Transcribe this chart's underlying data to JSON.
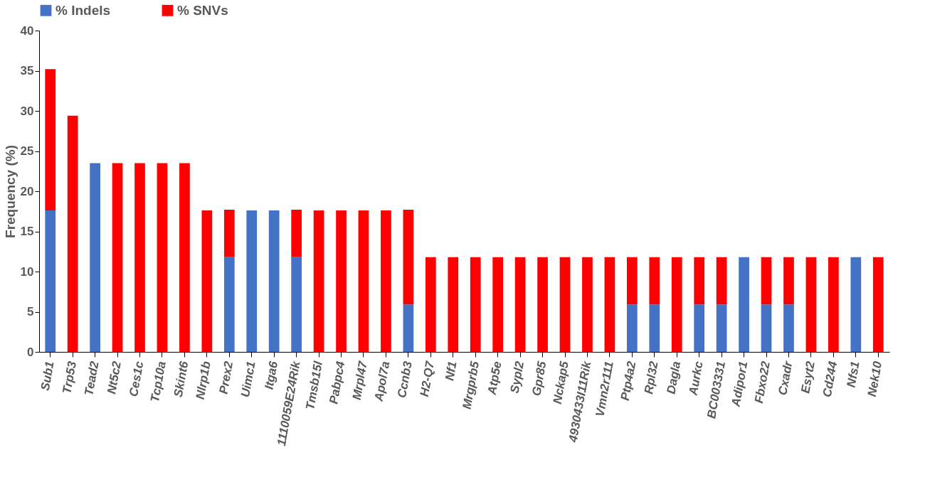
{
  "chart_data": {
    "type": "bar",
    "stacked": true,
    "ylabel": "Frequency (%)",
    "legend": "top",
    "grid": false,
    "categories": [
      "Sub1",
      "Trp53",
      "Tead2",
      "Nt5c2",
      "Ces1c",
      "Tcp10a",
      "Skint6",
      "Nlrp1b",
      "Prex2",
      "Uimc1",
      "Itga6",
      "1110059E24Rik",
      "Tmsb15l",
      "Pabpc4",
      "Mrpl47",
      "Apol7a",
      "Ccnb3",
      "H2-Q7",
      "Nf1",
      "Mrgprb5",
      "Atp5e",
      "Sypl2",
      "Gpr85",
      "Nckap5",
      "4930433I11Rik",
      "Vmn2r111",
      "Ptp4a2",
      "Rpl32",
      "Dagla",
      "Aurkc",
      "BC003331",
      "Adipor1",
      "Fbxo22",
      "Cxadr",
      "Esyt2",
      "Cd244",
      "Nfs1",
      "Nek10"
    ],
    "series": [
      {
        "name": "% Indels",
        "color": "#4472c4",
        "values": [
          17.6,
          null,
          23.5,
          null,
          null,
          null,
          null,
          null,
          11.8,
          17.6,
          17.6,
          11.8,
          null,
          null,
          null,
          null,
          5.9,
          null,
          null,
          null,
          null,
          null,
          null,
          null,
          null,
          null,
          5.9,
          5.9,
          null,
          5.9,
          5.9,
          11.8,
          5.9,
          5.9,
          null,
          null,
          11.8,
          null
        ]
      },
      {
        "name": "% SNVs",
        "color": "#ff0000",
        "values": [
          17.6,
          29.4,
          null,
          23.5,
          23.5,
          23.5,
          23.5,
          17.6,
          5.9,
          null,
          null,
          5.9,
          17.6,
          17.6,
          17.6,
          17.6,
          11.8,
          11.8,
          11.8,
          11.8,
          11.8,
          11.8,
          11.8,
          11.8,
          11.8,
          11.8,
          5.9,
          5.9,
          11.8,
          5.9,
          5.9,
          null,
          5.9,
          5.9,
          11.8,
          11.8,
          null,
          11.8
        ]
      }
    ],
    "ylim": [
      0,
      40
    ],
    "yticks": [
      0,
      5,
      10,
      15,
      20,
      25,
      30,
      35,
      40
    ]
  }
}
